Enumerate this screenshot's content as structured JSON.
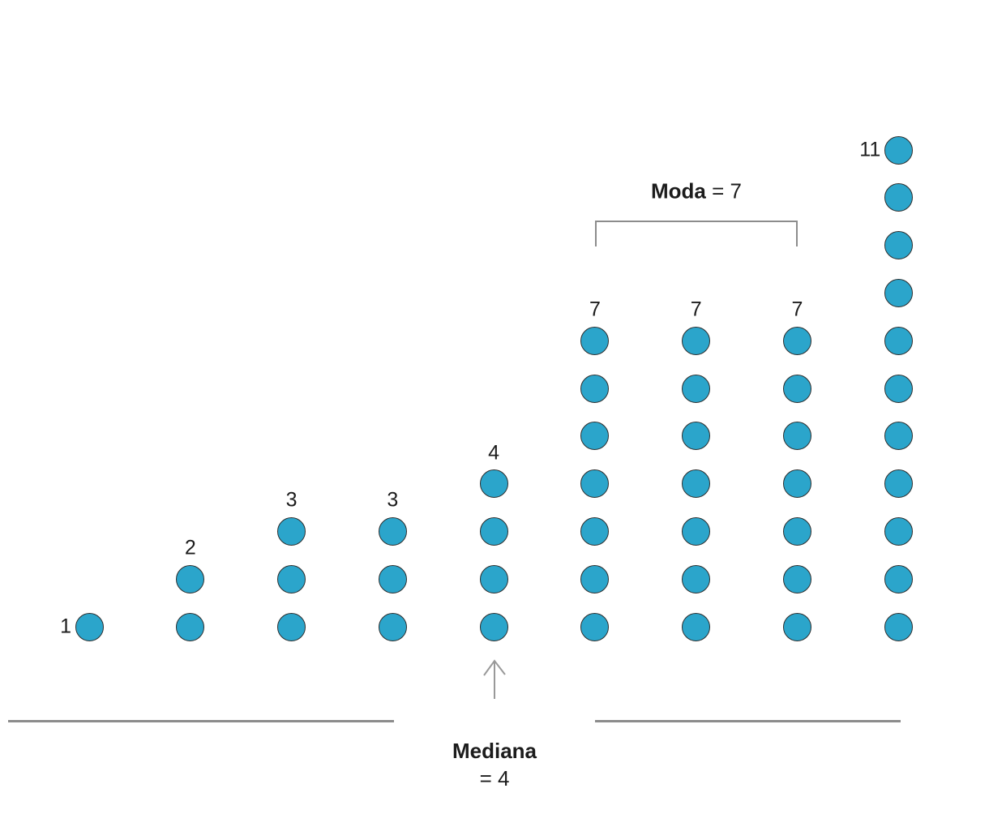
{
  "chart_data": {
    "type": "dot_plot",
    "title": "",
    "values": [
      1,
      2,
      3,
      3,
      4,
      7,
      7,
      7,
      11
    ],
    "column_labels": [
      "1",
      "2",
      "3",
      "3",
      "4",
      "7",
      "7",
      "7",
      "11"
    ],
    "label_placement": [
      "left",
      "top",
      "top",
      "top",
      "top",
      "top",
      "top",
      "top",
      "left"
    ],
    "annotations": {
      "moda": {
        "label_bold": "Moda",
        "label_rest": " = 7",
        "bracket_column_range": [
          5,
          7
        ]
      },
      "mediana": {
        "label_bold": "Mediana",
        "label_rest": "= 4",
        "arrow_column": 4
      },
      "underline_left_column_range": [
        0,
        3
      ],
      "underline_right_column_range": [
        5,
        8
      ]
    },
    "legend": null,
    "grid": false
  },
  "style": {
    "dot_fill": "#2BA5CB",
    "dot_stroke": "#2E2E2E",
    "line_color": "#8C8C8C",
    "arrow_color": "#999999",
    "text_color": "#1C1C1C",
    "background": "#FFFFFF"
  }
}
